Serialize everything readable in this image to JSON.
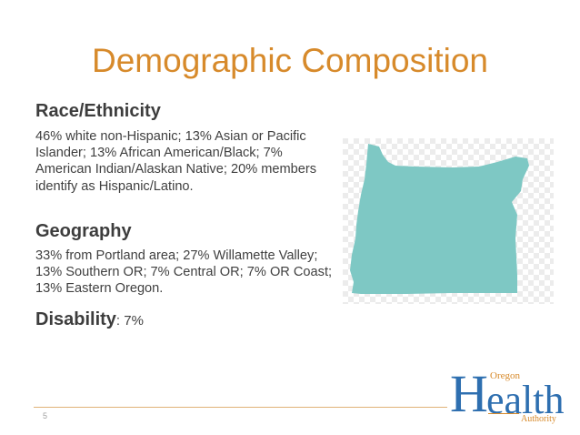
{
  "slide": {
    "title": "Demographic Composition",
    "page_number": "5"
  },
  "sections": {
    "race": {
      "heading": "Race/Ethnicity",
      "body": "46% white non-Hispanic; 13% Asian or Pacific Islander; 13% African American/Black; 7% American Indian/Alaskan Native; 20% members identify as Hispanic/Latino."
    },
    "geography": {
      "heading": "Geography",
      "body": "33% from Portland area; 27% Willamette Valley; 13% Southern OR; 7% Central OR; 7% OR Coast; 13% Eastern Oregon."
    },
    "disability": {
      "heading": "Disability",
      "value": ": 7%"
    }
  },
  "map": {
    "icon": "oregon-state-map-icon",
    "fill_color": "#7ec8c4"
  },
  "logo": {
    "line_top": "Oregon",
    "main_initial": "H",
    "main_rest": "ealth",
    "line_bottom": "Authority"
  },
  "colors": {
    "title": "#d78a2b",
    "logo_blue": "#2e6fb0",
    "accent_orange": "#d78a2b"
  }
}
